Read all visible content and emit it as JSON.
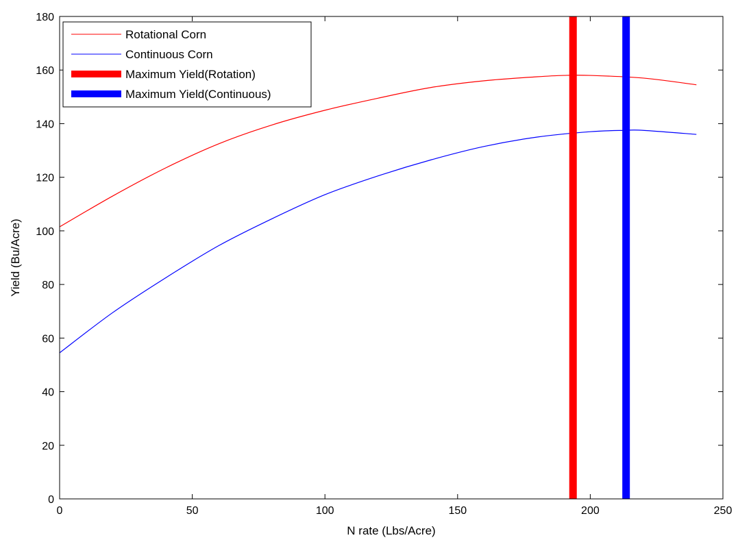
{
  "chart_data": {
    "type": "line",
    "title": "",
    "xlabel": "N rate (Lbs/Acre)",
    "ylabel": "Yield (Bu/Acre)",
    "xlim": [
      0,
      250
    ],
    "ylim": [
      0,
      180
    ],
    "xticks": [
      "0",
      "50",
      "100",
      "150",
      "200",
      "250"
    ],
    "yticks": [
      "0",
      "20",
      "40",
      "60",
      "80",
      "100",
      "120",
      "140",
      "160",
      "180"
    ],
    "grid": false,
    "legend_position": "top-left",
    "series": [
      {
        "name": "Rotational Corn",
        "color": "#ff0000",
        "x": [
          0,
          20,
          40,
          60,
          80,
          100,
          120,
          140,
          160,
          180,
          190,
          200,
          220,
          240
        ],
        "y": [
          101.5,
          113.0,
          123.5,
          132.5,
          139.5,
          145.0,
          149.5,
          153.5,
          156.0,
          157.5,
          158.0,
          158.0,
          157.0,
          154.5
        ]
      },
      {
        "name": "Continuous Corn",
        "color": "#0000ff",
        "x": [
          0,
          20,
          40,
          60,
          80,
          100,
          120,
          140,
          160,
          180,
          200,
          213,
          220,
          240
        ],
        "y": [
          54.5,
          69.5,
          82.5,
          94.5,
          104.5,
          113.5,
          120.5,
          126.5,
          131.5,
          135.0,
          137.0,
          137.5,
          137.5,
          136.0
        ]
      }
    ],
    "vertical_markers": [
      {
        "name": "Maximum Yield(Rotation)",
        "x": 193.5,
        "color": "#ff0000"
      },
      {
        "name": "Maximum Yield(Continuous)",
        "x": 213.5,
        "color": "#0000ff"
      }
    ]
  }
}
